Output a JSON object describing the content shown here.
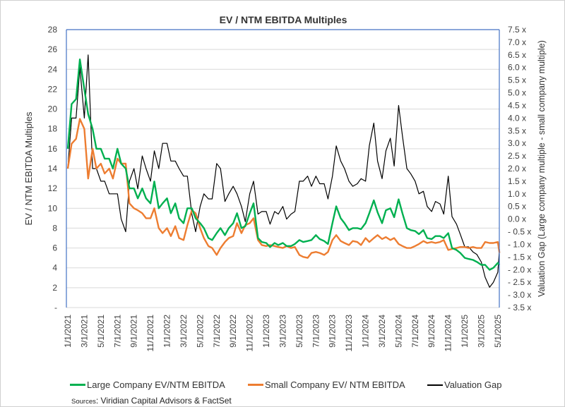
{
  "chart_data": {
    "type": "line",
    "title": "EV / NTM EBITDA Multiples",
    "ylabel": "EV / NTM EBITDA Multiples",
    "y2label": "Valuation Gap (Large company multiple - small company multiple)",
    "ylim": [
      0,
      28
    ],
    "y_ticks": [
      "-",
      "2",
      "4",
      "6",
      "8",
      "10",
      "12",
      "14",
      "16",
      "18",
      "20",
      "22",
      "24",
      "26",
      "28"
    ],
    "y2lim": [
      -3.5,
      7.5
    ],
    "y2_ticks": [
      "- 3.5 x",
      "- 3.0 x",
      "- 2.5 x",
      "- 2.0 x",
      "- 1.5 x",
      "- 1.0 x",
      "- 0.5 x",
      "0.0 x",
      "0.5 x",
      "1.0 x",
      "1.5 x",
      "2.0 x",
      "2.5 x",
      "3.0 x",
      "3.5 x",
      "4.0 x",
      "4.5 x",
      "5.0 x",
      "5.5 x",
      "6.0 x",
      "6.5 x",
      "7.0 x",
      "7.5 x"
    ],
    "x_ticks": [
      "1/1/2021",
      "3/1/2021",
      "5/1/2021",
      "7/1/2021",
      "9/1/2021",
      "11/1/2021",
      "1/1/2022",
      "3/1/2022",
      "5/1/2022",
      "7/1/2022",
      "9/1/2022",
      "11/1/2022",
      "1/1/2023",
      "3/1/2023",
      "5/1/2023",
      "7/1/2023",
      "9/1/2023",
      "11/1/2023",
      "1/1/2024",
      "3/1/2024",
      "5/1/2024",
      "7/1/2024",
      "9/1/2024",
      "11/1/2024",
      "1/1/2025",
      "3/1/2025",
      "5/1/2025"
    ],
    "grid": true,
    "legend_placement": "bottom",
    "x": [
      "2021-01-01",
      "2021-01-15",
      "2021-02-01",
      "2021-02-15",
      "2021-03-01",
      "2021-03-15",
      "2021-04-01",
      "2021-04-15",
      "2021-05-01",
      "2021-05-15",
      "2021-06-01",
      "2021-06-15",
      "2021-07-01",
      "2021-07-15",
      "2021-08-01",
      "2021-08-15",
      "2021-09-01",
      "2021-09-15",
      "2021-10-01",
      "2021-10-15",
      "2021-11-01",
      "2021-11-15",
      "2021-12-01",
      "2021-12-15",
      "2022-01-01",
      "2022-01-15",
      "2022-02-01",
      "2022-02-15",
      "2022-03-01",
      "2022-03-15",
      "2022-04-01",
      "2022-04-15",
      "2022-05-01",
      "2022-05-15",
      "2022-06-01",
      "2022-06-15",
      "2022-07-01",
      "2022-07-15",
      "2022-08-01",
      "2022-08-15",
      "2022-09-01",
      "2022-09-15",
      "2022-10-01",
      "2022-10-15",
      "2022-11-01",
      "2022-11-15",
      "2022-12-01",
      "2022-12-15",
      "2023-01-01",
      "2023-01-15",
      "2023-02-01",
      "2023-02-15",
      "2023-03-01",
      "2023-03-15",
      "2023-04-01",
      "2023-04-15",
      "2023-05-01",
      "2023-05-15",
      "2023-06-01",
      "2023-06-15",
      "2023-07-01",
      "2023-07-15",
      "2023-08-01",
      "2023-08-15",
      "2023-09-01",
      "2023-09-15",
      "2023-10-01",
      "2023-10-15",
      "2023-11-01",
      "2023-11-15",
      "2023-12-01",
      "2023-12-15",
      "2024-01-01",
      "2024-01-15",
      "2024-02-01",
      "2024-02-15",
      "2024-03-01",
      "2024-03-15",
      "2024-04-01",
      "2024-04-15",
      "2024-05-01",
      "2024-05-15",
      "2024-06-01",
      "2024-06-15",
      "2024-07-01",
      "2024-07-15",
      "2024-08-01",
      "2024-08-15",
      "2024-09-01",
      "2024-09-15",
      "2024-10-01",
      "2024-10-15",
      "2024-11-01",
      "2024-11-15",
      "2024-12-01",
      "2024-12-15",
      "2025-01-01",
      "2025-01-15",
      "2025-02-01",
      "2025-02-15",
      "2025-03-01",
      "2025-03-15",
      "2025-04-01",
      "2025-04-15",
      "2025-05-01",
      "2025-05-07"
    ],
    "series": [
      {
        "name": "Large Company EV/NTM EBITDA",
        "axis": "left",
        "color": "#00b050",
        "values": [
          16,
          20.5,
          21,
          25,
          22,
          19.5,
          18,
          16,
          16,
          15,
          15,
          14,
          16,
          14.5,
          14,
          12,
          12,
          11,
          12,
          11,
          10.5,
          12.7,
          10,
          10.5,
          11,
          9.5,
          10.5,
          9,
          8.5,
          10,
          10,
          9,
          8.5,
          8,
          7,
          6.8,
          7.5,
          8,
          7.3,
          8,
          8.5,
          9.5,
          8,
          8.2,
          9.5,
          10.5,
          7,
          6.6,
          6.5,
          6.1,
          6.5,
          6.3,
          6.5,
          6.2,
          6.2,
          6.4,
          6.8,
          6.6,
          6.7,
          6.8,
          7.3,
          6.9,
          6.7,
          6.4,
          8.5,
          10.2,
          9.0,
          8.5,
          7.8,
          8.0,
          8.0,
          7.9,
          8.5,
          9.5,
          10.8,
          9.6,
          8.5,
          9.8,
          10,
          9.1,
          10.9,
          9.5,
          8.0,
          7.8,
          7.7,
          7.4,
          7.8,
          7.0,
          6.9,
          7.2,
          7.2,
          7.0,
          7.5,
          6.0,
          5.8,
          5.5,
          5.0,
          4.9,
          4.8,
          4.6,
          4.3,
          4.3,
          3.8,
          4.0,
          4.5,
          4.3
        ]
      },
      {
        "name": "Small Company EV/ NTM EBITDA",
        "axis": "left",
        "color": "#ed7d31",
        "values": [
          14,
          16.5,
          17,
          19,
          18,
          13,
          16,
          14,
          14.5,
          13.5,
          14,
          13,
          15,
          14.5,
          14.5,
          10.5,
          10,
          9.8,
          9.5,
          9.0,
          9.0,
          10,
          8,
          7.5,
          8,
          7.2,
          8.2,
          7,
          6.8,
          8.3,
          9.8,
          9.5,
          8.0,
          7.0,
          6.2,
          6.0,
          5.3,
          6.0,
          6.6,
          7.0,
          7.2,
          8.5,
          7.5,
          8.3,
          8.5,
          9.0,
          6.8,
          6.3,
          6.2,
          6.3,
          6.2,
          6.1,
          6.0,
          6.2,
          6.0,
          6.1,
          5.3,
          5.1,
          5.0,
          5.5,
          5.6,
          5.5,
          5.3,
          5.6,
          6.8,
          7.3,
          6.7,
          6.5,
          6.3,
          6.7,
          6.6,
          6.3,
          7.0,
          6.6,
          7.0,
          7.3,
          6.9,
          7.1,
          6.8,
          7.0,
          6.4,
          6.2,
          6.0,
          6.0,
          6.2,
          6.4,
          6.7,
          6.5,
          6.6,
          6.5,
          6.6,
          6.8,
          5.8,
          5.9,
          6.0,
          6.1,
          6.1,
          6.0,
          6.1,
          6.0,
          6.0,
          6.6,
          6.5,
          6.5,
          6.6,
          5.5
        ]
      },
      {
        "name": "Valuation Gap",
        "axis": "right",
        "color": "#000000",
        "values": [
          2,
          4,
          4,
          6,
          4,
          6.5,
          2,
          2,
          1.5,
          1.5,
          1,
          1,
          1,
          0,
          -0.5,
          1.5,
          2,
          1.2,
          2.5,
          2,
          1.5,
          2.7,
          2,
          3,
          3,
          2.3,
          2.3,
          2,
          1.7,
          1.7,
          0.2,
          -0.5,
          0.5,
          1,
          0.8,
          0.8,
          2.2,
          2,
          0.7,
          1,
          1.3,
          1,
          0.5,
          -0.1,
          1,
          1.5,
          0.2,
          0.3,
          0.3,
          -0.2,
          0.3,
          0.2,
          0.5,
          0,
          0.2,
          0.3,
          1.5,
          1.5,
          1.7,
          1.3,
          1.7,
          1.4,
          1.4,
          0.8,
          1.7,
          2.9,
          2.3,
          2,
          1.5,
          1.3,
          1.4,
          1.6,
          1.5,
          2.9,
          3.8,
          2.3,
          1.6,
          2.7,
          3.2,
          2.1,
          4.5,
          3.3,
          2,
          1.8,
          1.5,
          1,
          1.1,
          0.5,
          0.3,
          0.7,
          0.6,
          0.2,
          1.7,
          0.1,
          -0.2,
          -0.6,
          -1.1,
          -1.1,
          -1.3,
          -1.4,
          -1.7,
          -2.3,
          -2.7,
          -2.5,
          -2.1,
          -1.2
        ]
      }
    ]
  },
  "sources": {
    "prefix": "Sources",
    "text": ": Viridian Capital Advisors & FactSet"
  }
}
